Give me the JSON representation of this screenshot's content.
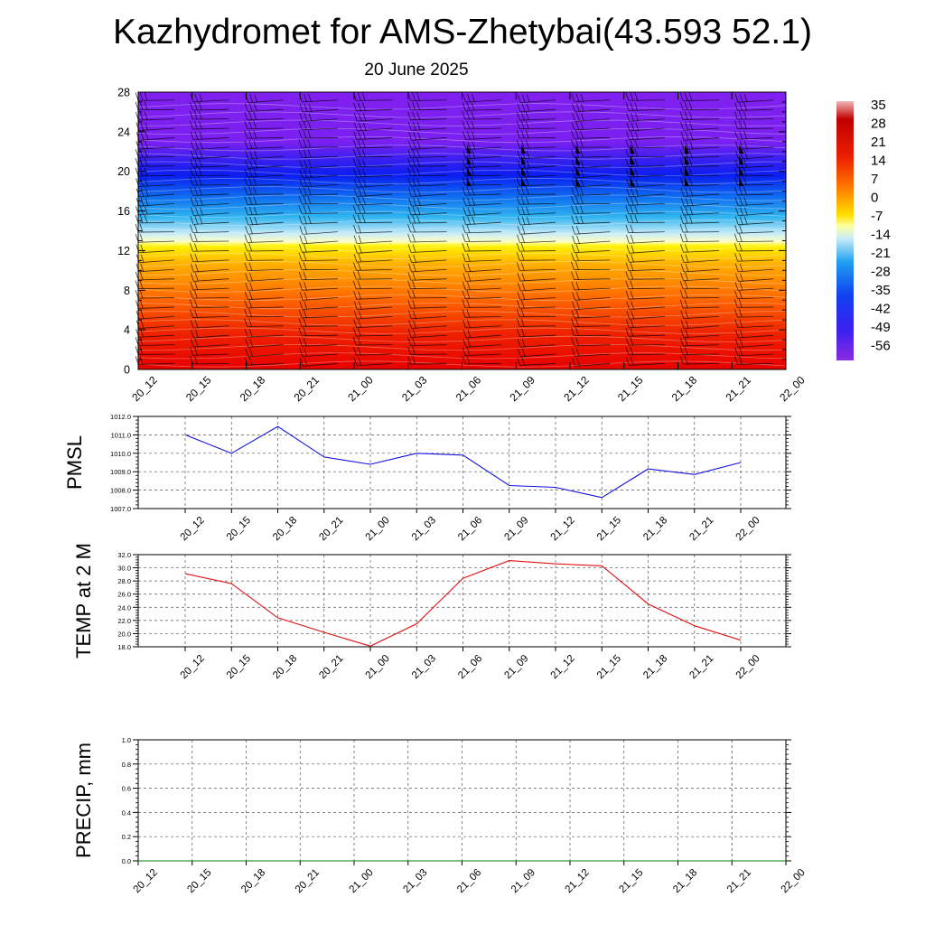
{
  "title": "Kazhydromet for AMS-Zhetybai(43.593 52.1)",
  "subtitle": "20 June 2025",
  "colors": {
    "pmsl_line": "#1010e0",
    "temp_line": "#e01010",
    "precip_line": "#008000",
    "grid": "#555555"
  },
  "chart_data": [
    {
      "type": "heatmap",
      "title": "",
      "ylabel": "",
      "ylim": [
        0,
        28
      ],
      "yticks": [
        "0",
        "4",
        "8",
        "12",
        "16",
        "20",
        "24",
        "28"
      ],
      "x": [
        "20_12",
        "20_15",
        "20_18",
        "20_21",
        "21_00",
        "21_03",
        "21_06",
        "21_09",
        "21_12",
        "21_15",
        "21_18",
        "21_21",
        "22_00"
      ],
      "colorbar": {
        "labels": [
          "35",
          "28",
          "21",
          "14",
          "7",
          "0",
          "-7",
          "-14",
          "-21",
          "-28",
          "-35",
          "-42",
          "-49",
          "-56"
        ],
        "range": [
          -63,
          42
        ]
      },
      "temperature_profile": {
        "levels": [
          0,
          4,
          8,
          12,
          14,
          16,
          18,
          20,
          22,
          24,
          28
        ],
        "values": [
          28,
          24,
          14,
          2,
          -14,
          -28,
          -42,
          -52,
          -56,
          -58,
          -60
        ]
      },
      "wind_barbs": "present at each time step and level"
    },
    {
      "type": "line",
      "ylabel": "PMSL",
      "ylim": [
        1007.0,
        1012.0
      ],
      "yticks": [
        "1007.0",
        "1008.0",
        "1009.0",
        "1010.0",
        "1011.0",
        "1012.0"
      ],
      "x": [
        "20_12",
        "20_15",
        "20_18",
        "20_21",
        "21_00",
        "21_03",
        "21_06",
        "21_09",
        "21_12",
        "21_15",
        "21_18",
        "21_21",
        "22_00"
      ],
      "values": [
        1011.0,
        1010.0,
        1011.45,
        1009.8,
        1009.4,
        1010.0,
        1009.9,
        1008.25,
        1008.15,
        1007.6,
        1009.15,
        1008.85,
        1009.5
      ]
    },
    {
      "type": "line",
      "ylabel": "TEMP at 2 M",
      "ylim": [
        18.0,
        32.0
      ],
      "yticks": [
        "18.0",
        "20.0",
        "22.0",
        "24.0",
        "26.0",
        "28.0",
        "30.0",
        "32.0"
      ],
      "x": [
        "20_12",
        "20_15",
        "20_18",
        "20_21",
        "21_00",
        "21_03",
        "21_06",
        "21_09",
        "21_12",
        "21_15",
        "21_18",
        "21_21",
        "22_00"
      ],
      "values": [
        29.1,
        27.6,
        22.4,
        20.2,
        18.1,
        21.5,
        28.4,
        31.1,
        30.6,
        30.3,
        24.5,
        21.2,
        19.0
      ]
    },
    {
      "type": "line",
      "ylabel": "PRECIP, mm",
      "ylim": [
        0.0,
        1.0
      ],
      "yticks": [
        "0.0",
        "0.2",
        "0.4",
        "0.6",
        "0.8",
        "1.0"
      ],
      "x": [
        "20_12",
        "20_15",
        "20_18",
        "20_21",
        "21_00",
        "21_03",
        "21_06",
        "21_09",
        "21_12",
        "21_15",
        "21_18",
        "21_21",
        "22_00"
      ],
      "values": [
        0,
        0,
        0,
        0,
        0,
        0,
        0,
        0,
        0,
        0,
        0,
        0,
        0
      ]
    }
  ]
}
